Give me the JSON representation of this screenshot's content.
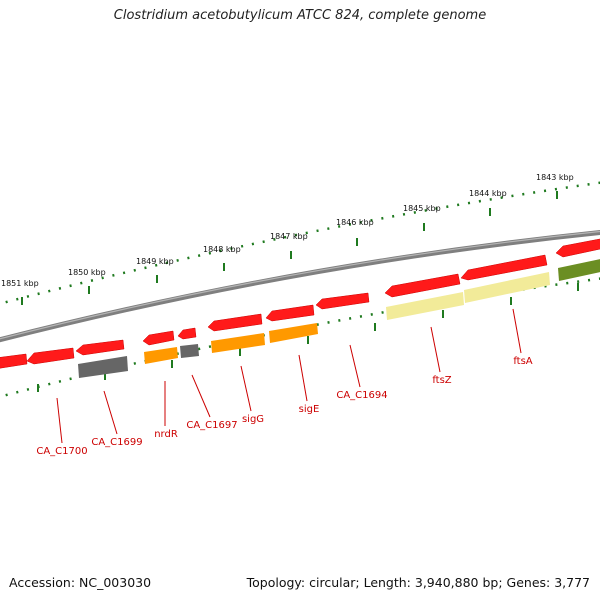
{
  "title": "Clostridium acetobutylicum ATCC 824, complete genome",
  "footer": {
    "accession": "Accession: NC_003030",
    "topology": "Topology: circular; Length: 3,940,880 bp; Genes: 3,777"
  },
  "colors": {
    "backbone": "#808080",
    "tick": "#1f7a1f",
    "label": "#cc0000",
    "gene_red": "#ff1a1a",
    "gene_orange": "#ff9900",
    "gene_gray": "#666666",
    "gene_yellow": "#f2eb99",
    "gene_olive": "#6b8e23"
  },
  "ruler_labels": [
    "1851 kbp",
    "1850 kbp",
    "1849 kbp",
    "1848 kbp",
    "1847 kbp",
    "1846 kbp",
    "1845 kbp",
    "1844 kbp",
    "1843 kbp"
  ],
  "gene_labels": [
    "CA_C1700",
    "CA_C1699",
    "nrdR",
    "CA_C1697",
    "sigG",
    "sigE",
    "CA_C1694",
    "ftsZ",
    "ftsA"
  ]
}
